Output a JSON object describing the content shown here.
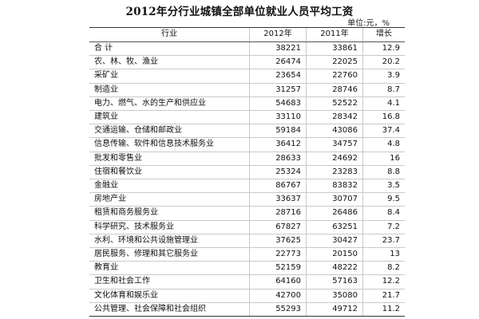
{
  "title": "2012年分行业城镇全部单位就业人员平均工资",
  "unit": "单位:元，%",
  "headers": {
    "industry": "行业",
    "y2012": "2012年",
    "y2011": "2011年",
    "growth": "增长"
  },
  "rows": [
    {
      "industry": "合    计",
      "y2012": "38221",
      "y2011": "33861",
      "growth": "12.9"
    },
    {
      "industry": "农、林、牧、渔业",
      "y2012": "26474",
      "y2011": "22025",
      "growth": "20.2"
    },
    {
      "industry": "采矿业",
      "y2012": "23654",
      "y2011": "22760",
      "growth": "3.9"
    },
    {
      "industry": "制造业",
      "y2012": "31257",
      "y2011": "28746",
      "growth": "8.7"
    },
    {
      "industry": "电力、燃气、水的生产和供应业",
      "y2012": "54683",
      "y2011": "52522",
      "growth": "4.1"
    },
    {
      "industry": "建筑业",
      "y2012": "33110",
      "y2011": "28342",
      "growth": "16.8"
    },
    {
      "industry": "交通运输、仓储和邮政业",
      "y2012": "59184",
      "y2011": "43086",
      "growth": "37.4"
    },
    {
      "industry": "信息传输、软件和信息技术服务业",
      "y2012": "36412",
      "y2011": "34757",
      "growth": "4.8"
    },
    {
      "industry": "批发和零售业",
      "y2012": "28633",
      "y2011": "24692",
      "growth": "16"
    },
    {
      "industry": "住宿和餐饮业",
      "y2012": "25324",
      "y2011": "23283",
      "growth": "8.8"
    },
    {
      "industry": "金融业",
      "y2012": "86767",
      "y2011": "83832",
      "growth": "3.5"
    },
    {
      "industry": "房地产业",
      "y2012": "33637",
      "y2011": "30707",
      "growth": "9.5"
    },
    {
      "industry": "租赁和商务服务业",
      "y2012": "28716",
      "y2011": "26486",
      "growth": "8.4"
    },
    {
      "industry": "科学研究、技术服务业",
      "y2012": "67827",
      "y2011": "63251",
      "growth": "7.2"
    },
    {
      "industry": "水利、环境和公共设施管理业",
      "y2012": "37625",
      "y2011": "30427",
      "growth": "23.7"
    },
    {
      "industry": "居民服务、修理和其它服务业",
      "y2012": "22773",
      "y2011": "20150",
      "growth": "13"
    },
    {
      "industry": "教育业",
      "y2012": "52159",
      "y2011": "48222",
      "growth": "8.2"
    },
    {
      "industry": "卫生和社会工作",
      "y2012": "64160",
      "y2011": "57163",
      "growth": "12.2"
    },
    {
      "industry": "文化体育和娱乐业",
      "y2012": "42700",
      "y2011": "35080",
      "growth": "21.7"
    },
    {
      "industry": "公共管理、社会保障和社会组织",
      "y2012": "55293",
      "y2011": "49712",
      "growth": "11.2"
    }
  ]
}
